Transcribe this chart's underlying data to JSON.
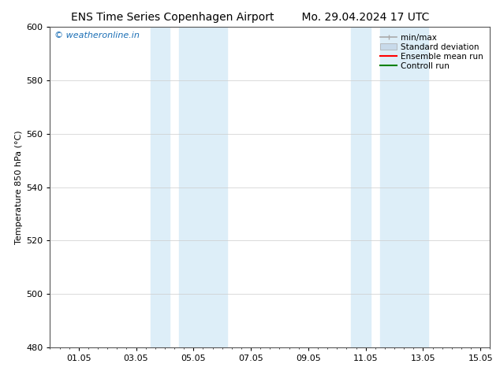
{
  "title_left": "ENS Time Series Copenhagen Airport",
  "title_right": "Mo. 29.04.2024 17 UTC",
  "ylabel": "Temperature 850 hPa (°C)",
  "xlim_start": 0.0,
  "xlim_end": 14.166,
  "ylim": [
    480,
    600
  ],
  "yticks": [
    480,
    500,
    520,
    540,
    560,
    580,
    600
  ],
  "xtick_labels": [
    "01.05",
    "03.05",
    "05.05",
    "07.05",
    "09.05",
    "11.05",
    "13.05",
    "15.05"
  ],
  "xtick_positions": [
    1.0,
    3.0,
    5.0,
    7.0,
    9.0,
    11.0,
    13.0,
    15.0
  ],
  "shaded_bands": [
    {
      "x_start": 3.5,
      "x_end": 4.17
    },
    {
      "x_start": 4.17,
      "x_end": 6.0
    },
    {
      "x_start": 10.5,
      "x_end": 11.17
    },
    {
      "x_start": 11.17,
      "x_end": 13.0
    }
  ],
  "shaded_color": "#ddeef8",
  "watermark_text": "© weatheronline.in",
  "watermark_color": "#1a6eb5",
  "legend_entries": [
    {
      "label": "min/max",
      "color": "#aaaaaa",
      "lw": 1.2,
      "style": "line_with_caps"
    },
    {
      "label": "Standard deviation",
      "color": "#c8daea",
      "lw": 8,
      "style": "thick"
    },
    {
      "label": "Ensemble mean run",
      "color": "red",
      "lw": 1.5,
      "style": "line"
    },
    {
      "label": "Controll run",
      "color": "green",
      "lw": 1.5,
      "style": "line"
    }
  ],
  "bg_color": "#ffffff",
  "grid_color": "#cccccc",
  "font_size_title": 10,
  "font_size_axis": 8,
  "font_size_legend": 7.5,
  "font_size_watermark": 8
}
